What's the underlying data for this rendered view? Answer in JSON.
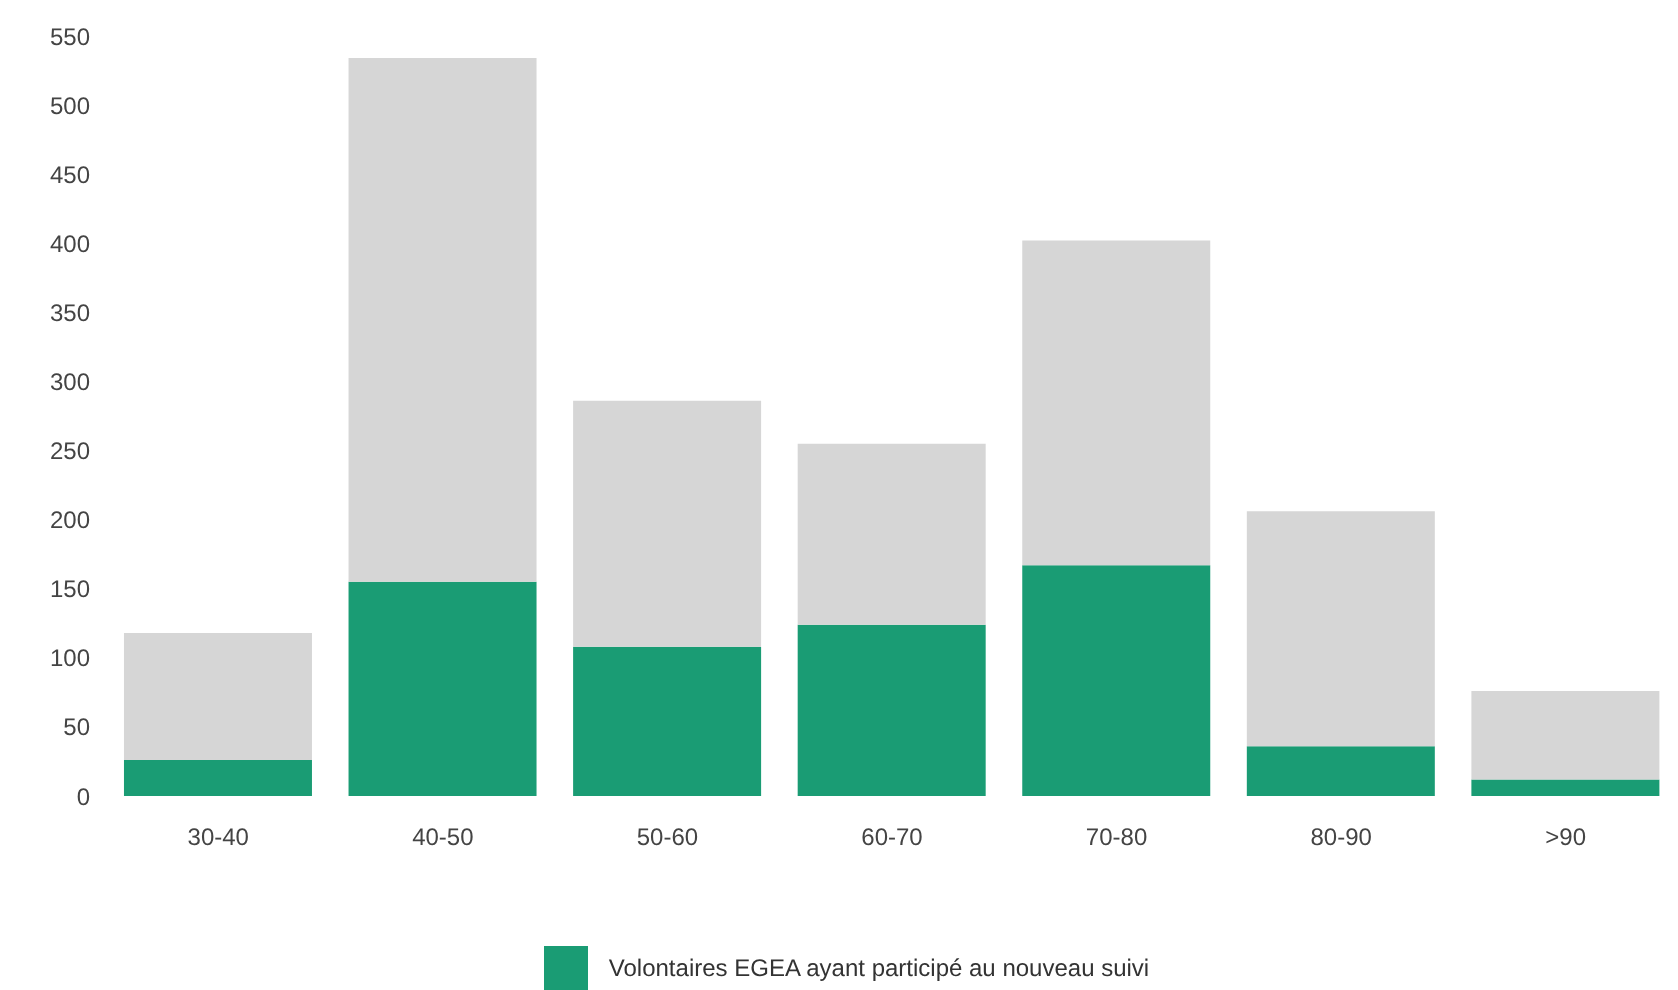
{
  "chart_data": {
    "type": "bar",
    "stacked": true,
    "categories": [
      "30-40",
      "40-50",
      "50-60",
      "60-70",
      "70-80",
      "80-90",
      ">90"
    ],
    "series": [
      {
        "name": "Volontaires EGEA ayant participé au nouveau suivi",
        "color": "#1a9c74",
        "values": [
          26,
          155,
          108,
          124,
          167,
          36,
          12
        ]
      },
      {
        "color": "#d6d6d6",
        "values": [
          92,
          379,
          178,
          131,
          235,
          170,
          64
        ]
      }
    ],
    "ylim": [
      0,
      550
    ],
    "yticks": [
      0,
      50,
      100,
      150,
      200,
      250,
      300,
      350,
      400,
      450,
      500,
      550
    ],
    "grid": false,
    "legend": "bottom"
  }
}
